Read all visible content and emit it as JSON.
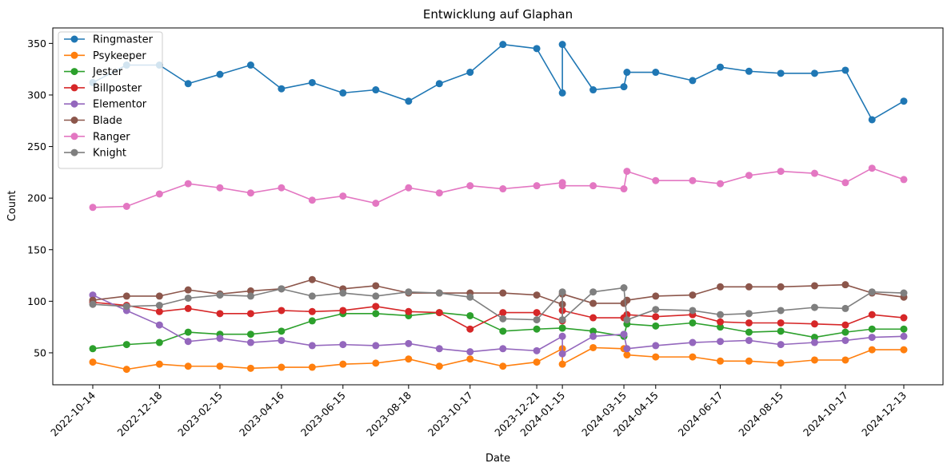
{
  "chart_data": {
    "type": "line",
    "title": "Entwicklung auf Glaphan",
    "xlabel": "Date",
    "ylabel": "Count",
    "ylim": [
      19,
      365
    ],
    "yticks": [
      50,
      100,
      150,
      200,
      250,
      300,
      350
    ],
    "xticks": [
      "2022-10-14",
      "2022-12-18",
      "2023-02-15",
      "2023-04-16",
      "2023-06-15",
      "2023-08-18",
      "2023-10-17",
      "2023-12-21",
      "2024-01-15",
      "2024-03-15",
      "2024-04-15",
      "2024-06-17",
      "2024-08-15",
      "2024-10-17",
      "2024-12-13"
    ],
    "legend_position": "upper-left",
    "grid": false,
    "x": [
      "2022-10-14",
      "2022-11-16",
      "2022-12-18",
      "2023-01-15",
      "2023-02-15",
      "2023-03-17",
      "2023-04-16",
      "2023-05-16",
      "2023-06-15",
      "2023-07-17",
      "2023-08-18",
      "2023-09-17",
      "2023-10-17",
      "2023-11-18",
      "2023-12-21",
      "2024-01-15",
      "2024-01-15",
      "2024-02-14",
      "2024-03-15",
      "2024-03-18",
      "2024-04-15",
      "2024-05-21",
      "2024-06-17",
      "2024-07-15",
      "2024-08-15",
      "2024-09-17",
      "2024-10-17",
      "2024-11-12",
      "2024-12-13"
    ],
    "series": [
      {
        "name": "Ringmaster",
        "color": "#1f77b4",
        "values": [
          312,
          329,
          329,
          311,
          320,
          329,
          306,
          312,
          302,
          305,
          294,
          311,
          322,
          349,
          345,
          302,
          349,
          305,
          308,
          322,
          322,
          314,
          327,
          323,
          321,
          321,
          324,
          276,
          294
        ]
      },
      {
        "name": "Psykeeper",
        "color": "#ff7f0e",
        "values": [
          41,
          34,
          39,
          37,
          37,
          35,
          36,
          36,
          39,
          40,
          44,
          37,
          44,
          37,
          41,
          54,
          39,
          55,
          54,
          48,
          46,
          46,
          42,
          42,
          40,
          43,
          43,
          53,
          53
        ]
      },
      {
        "name": "Jester",
        "color": "#2ca02c",
        "values": [
          54,
          58,
          60,
          70,
          68,
          68,
          71,
          81,
          88,
          88,
          86,
          89,
          86,
          71,
          73,
          74,
          74,
          71,
          66,
          78,
          76,
          79,
          75,
          70,
          71,
          65,
          70,
          73,
          73
        ]
      },
      {
        "name": "Billposter",
        "color": "#d62728",
        "values": [
          99,
          96,
          90,
          93,
          88,
          88,
          91,
          90,
          91,
          95,
          90,
          89,
          73,
          89,
          89,
          81,
          91,
          84,
          84,
          87,
          85,
          87,
          80,
          79,
          79,
          78,
          77,
          87,
          84
        ]
      },
      {
        "name": "Elementor",
        "color": "#9467bd",
        "values": [
          106,
          91,
          77,
          61,
          64,
          60,
          62,
          57,
          58,
          57,
          59,
          54,
          51,
          54,
          52,
          66,
          49,
          66,
          68,
          54,
          57,
          60,
          61,
          62,
          58,
          60,
          62,
          65,
          66
        ]
      },
      {
        "name": "Blade",
        "color": "#8c564b",
        "values": [
          101,
          105,
          105,
          111,
          107,
          110,
          112,
          121,
          112,
          115,
          108,
          108,
          108,
          108,
          106,
          97,
          107,
          98,
          98,
          101,
          105,
          106,
          114,
          114,
          114,
          115,
          116,
          108,
          104
        ]
      },
      {
        "name": "Ranger",
        "color": "#e377c2",
        "values": [
          191,
          192,
          204,
          214,
          210,
          205,
          210,
          198,
          202,
          195,
          210,
          205,
          212,
          209,
          212,
          215,
          212,
          212,
          209,
          226,
          217,
          217,
          214,
          222,
          226,
          224,
          215,
          229,
          218
        ]
      },
      {
        "name": "Knight",
        "color": "#7f7f7f",
        "values": [
          97,
          95,
          96,
          103,
          106,
          105,
          112,
          105,
          108,
          105,
          109,
          108,
          104,
          83,
          82,
          109,
          82,
          109,
          113,
          82,
          92,
          91,
          87,
          88,
          91,
          94,
          93,
          109,
          108
        ]
      }
    ]
  }
}
